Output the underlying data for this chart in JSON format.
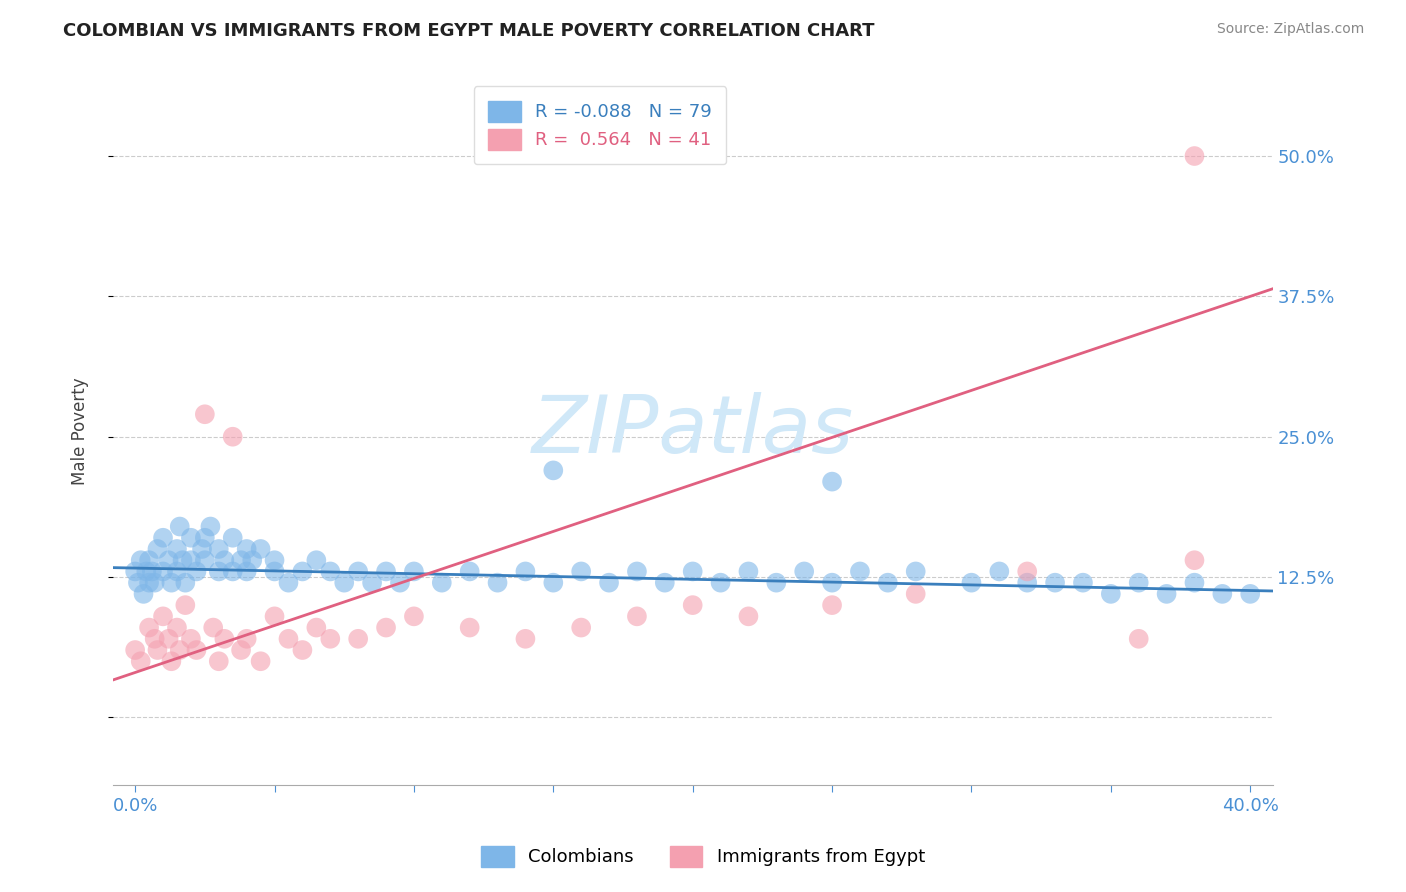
{
  "title": "COLOMBIAN VS IMMIGRANTS FROM EGYPT MALE POVERTY CORRELATION CHART",
  "source": "Source: ZipAtlas.com",
  "ylabel": "Male Poverty",
  "yticks": [
    0.0,
    0.125,
    0.25,
    0.375,
    0.5
  ],
  "ytick_labels": [
    "",
    "12.5%",
    "25.0%",
    "37.5%",
    "50.0%"
  ],
  "xlim": [
    -0.008,
    0.408
  ],
  "ylim": [
    -0.06,
    0.57
  ],
  "series1_color": "#7eb6e8",
  "series2_color": "#f4a0b0",
  "line1_color": "#3a7fbd",
  "line2_color": "#e06080",
  "R1": -0.088,
  "N1": 79,
  "R2": 0.564,
  "N2": 41,
  "legend1": "Colombians",
  "legend2": "Immigrants from Egypt",
  "watermark": "ZIPatlas",
  "watermark_color": "#d0e8f8",
  "background_color": "#ffffff",
  "grid_color": "#cccccc",
  "colombian_x": [
    0.0,
    0.001,
    0.002,
    0.003,
    0.004,
    0.005,
    0.005,
    0.006,
    0.007,
    0.008,
    0.01,
    0.01,
    0.012,
    0.013,
    0.015,
    0.015,
    0.016,
    0.017,
    0.018,
    0.02,
    0.02,
    0.022,
    0.024,
    0.025,
    0.025,
    0.027,
    0.03,
    0.03,
    0.032,
    0.035,
    0.035,
    0.038,
    0.04,
    0.04,
    0.042,
    0.045,
    0.05,
    0.05,
    0.055,
    0.06,
    0.065,
    0.07,
    0.075,
    0.08,
    0.085,
    0.09,
    0.095,
    0.1,
    0.11,
    0.12,
    0.13,
    0.14,
    0.15,
    0.16,
    0.17,
    0.18,
    0.19,
    0.2,
    0.21,
    0.22,
    0.23,
    0.24,
    0.25,
    0.26,
    0.27,
    0.28,
    0.3,
    0.31,
    0.32,
    0.33,
    0.34,
    0.35,
    0.36,
    0.37,
    0.38,
    0.39,
    0.4,
    0.15,
    0.25
  ],
  "colombian_y": [
    0.13,
    0.12,
    0.14,
    0.11,
    0.13,
    0.12,
    0.14,
    0.13,
    0.12,
    0.15,
    0.13,
    0.16,
    0.14,
    0.12,
    0.15,
    0.13,
    0.17,
    0.14,
    0.12,
    0.16,
    0.14,
    0.13,
    0.15,
    0.16,
    0.14,
    0.17,
    0.15,
    0.13,
    0.14,
    0.16,
    0.13,
    0.14,
    0.15,
    0.13,
    0.14,
    0.15,
    0.14,
    0.13,
    0.12,
    0.13,
    0.14,
    0.13,
    0.12,
    0.13,
    0.12,
    0.13,
    0.12,
    0.13,
    0.12,
    0.13,
    0.12,
    0.13,
    0.12,
    0.13,
    0.12,
    0.13,
    0.12,
    0.13,
    0.12,
    0.13,
    0.12,
    0.13,
    0.12,
    0.13,
    0.12,
    0.13,
    0.12,
    0.13,
    0.12,
    0.12,
    0.12,
    0.11,
    0.12,
    0.11,
    0.12,
    0.11,
    0.11,
    0.22,
    0.21
  ],
  "egypt_x": [
    0.0,
    0.002,
    0.005,
    0.007,
    0.008,
    0.01,
    0.012,
    0.013,
    0.015,
    0.016,
    0.018,
    0.02,
    0.022,
    0.025,
    0.028,
    0.03,
    0.032,
    0.035,
    0.038,
    0.04,
    0.045,
    0.05,
    0.055,
    0.06,
    0.065,
    0.07,
    0.08,
    0.09,
    0.1,
    0.12,
    0.14,
    0.16,
    0.18,
    0.2,
    0.22,
    0.25,
    0.28,
    0.32,
    0.36,
    0.38,
    0.38
  ],
  "egypt_y": [
    0.06,
    0.05,
    0.08,
    0.07,
    0.06,
    0.09,
    0.07,
    0.05,
    0.08,
    0.06,
    0.1,
    0.07,
    0.06,
    0.27,
    0.08,
    0.05,
    0.07,
    0.25,
    0.06,
    0.07,
    0.05,
    0.09,
    0.07,
    0.06,
    0.08,
    0.07,
    0.07,
    0.08,
    0.09,
    0.08,
    0.07,
    0.08,
    0.09,
    0.1,
    0.09,
    0.1,
    0.11,
    0.13,
    0.07,
    0.14,
    0.5
  ]
}
